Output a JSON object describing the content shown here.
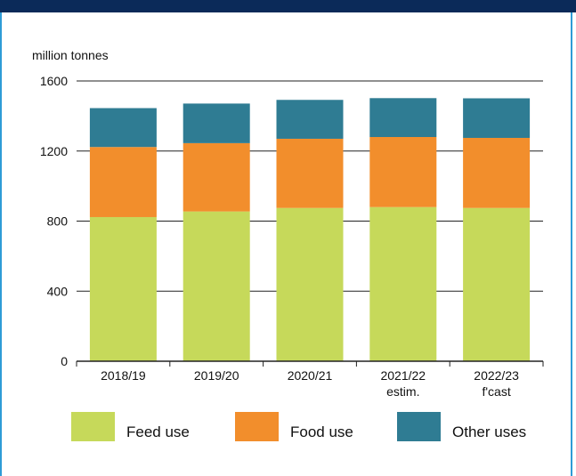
{
  "chart_data": {
    "type": "bar",
    "stacked": true,
    "ylabel": "million tonnes",
    "ylim": [
      0,
      1600
    ],
    "yticks": [
      0,
      400,
      800,
      1200,
      1600
    ],
    "categories": [
      "2018/19",
      "2019/20",
      "2020/21",
      "2021/22",
      "2022/23"
    ],
    "category_sublabels": [
      "",
      "",
      "",
      "estim.",
      "f'cast"
    ],
    "series": [
      {
        "name": "Feed use",
        "color": "#c6d95a",
        "values": [
          823,
          855,
          875,
          880,
          875
        ]
      },
      {
        "name": "Food use",
        "color": "#f28e2c",
        "values": [
          400,
          390,
          395,
          400,
          400
        ]
      },
      {
        "name": "Other uses",
        "color": "#2f7c93",
        "values": [
          222,
          226,
          222,
          222,
          226
        ]
      }
    ],
    "legend_position": "bottom"
  }
}
